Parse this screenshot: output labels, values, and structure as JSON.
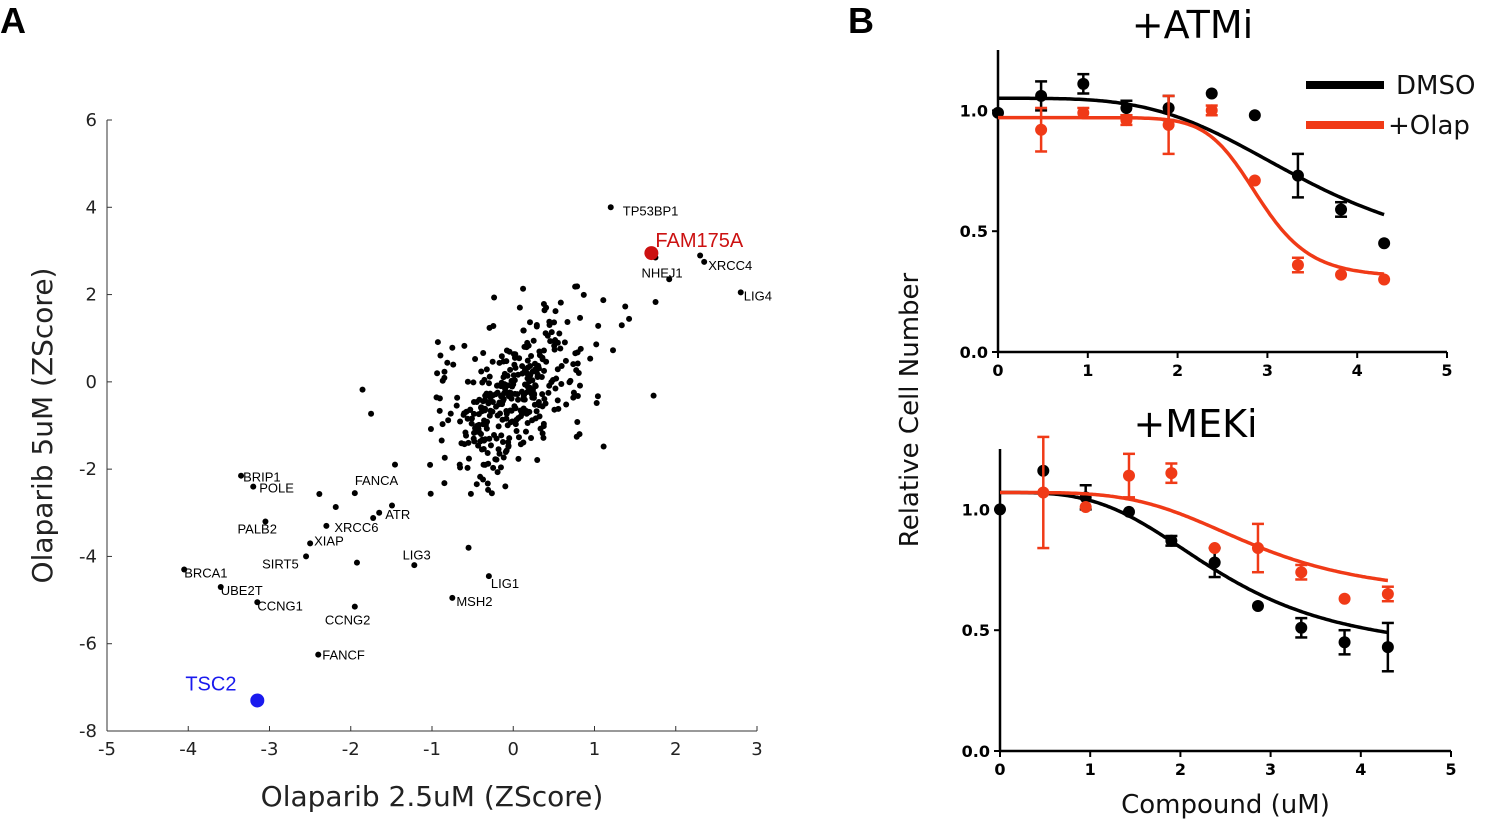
{
  "panels": {
    "a_letter": "A",
    "b_letter": "B"
  },
  "colors": {
    "black": "#000000",
    "red": "#f03a17",
    "fam": "#cc1111",
    "tsc": "#1a1aee"
  },
  "chart_data": [
    {
      "type": "scatter",
      "xlabel": "Olaparib 2.5uM (ZScore)",
      "ylabel": "Olaparib 5uM (ZScore)",
      "xlim": [
        -5,
        3
      ],
      "ylim": [
        -8,
        6
      ],
      "xticks": [
        "-5",
        "-4",
        "-3",
        "-2",
        "-1",
        "0",
        "1",
        "2",
        "3"
      ],
      "yticks": [
        "-8",
        "-6",
        "-4",
        "-2",
        "0",
        "2",
        "4",
        "6"
      ],
      "labeled_points": [
        {
          "label": "TP53BP1",
          "x": 1.2,
          "y": 4.0
        },
        {
          "label": "NHEJ1",
          "x": 1.75,
          "y": 2.85
        },
        {
          "label": "XRCC4",
          "x": 2.35,
          "y": 2.75
        },
        {
          "label": "LIG4",
          "x": 2.8,
          "y": 2.05
        },
        {
          "label": "BRIP1",
          "x": -3.35,
          "y": -2.15
        },
        {
          "label": "POLE",
          "x": -3.2,
          "y": -2.4
        },
        {
          "label": "FANCA",
          "x": -1.95,
          "y": -2.55
        },
        {
          "label": "XRCC6",
          "x": -2.3,
          "y": -3.3
        },
        {
          "label": "ATR",
          "x": -1.65,
          "y": -3.0
        },
        {
          "label": "PALB2",
          "x": -3.05,
          "y": -3.2
        },
        {
          "label": "XIAP",
          "x": -2.5,
          "y": -3.7
        },
        {
          "label": "SIRT5",
          "x": -2.55,
          "y": -4.0
        },
        {
          "label": "BRCA1",
          "x": -4.05,
          "y": -4.3
        },
        {
          "label": "UBE2T",
          "x": -3.6,
          "y": -4.7
        },
        {
          "label": "CCNG1",
          "x": -3.15,
          "y": -5.05
        },
        {
          "label": "CCNG2",
          "x": -1.95,
          "y": -5.15
        },
        {
          "label": "LIG3",
          "x": -0.55,
          "y": -3.8
        },
        {
          "label": "LIG1",
          "x": -0.3,
          "y": -4.45
        },
        {
          "label": "MSH2",
          "x": -0.75,
          "y": -4.95
        },
        {
          "label": "FANCF",
          "x": -2.4,
          "y": -6.25
        }
      ],
      "highlight_points": [
        {
          "label": "FAM175A",
          "x": 1.7,
          "y": 2.95,
          "color": "#cc1111"
        },
        {
          "label": "TSC2",
          "x": -3.15,
          "y": -7.3,
          "color": "#1a1aee"
        }
      ],
      "background_points": "approximately 380 unlabeled genes clustered around (0,0) with positive correlation"
    },
    {
      "type": "line",
      "title": "+ATMi",
      "xlim": [
        0,
        5
      ],
      "ylim": [
        0.0,
        1.25
      ],
      "xticks": [
        "0",
        "1",
        "2",
        "3",
        "4",
        "5"
      ],
      "yticks": [
        "0.0",
        "0.5",
        "1.0"
      ],
      "series": [
        {
          "name": "DMSO",
          "color": "#000000",
          "x": [
            0,
            0.48,
            0.95,
            1.43,
            1.9,
            2.38,
            2.86,
            3.34,
            3.82,
            4.3
          ],
          "y": [
            0.99,
            1.06,
            1.11,
            1.01,
            1.01,
            1.07,
            0.98,
            0.73,
            0.59,
            0.45
          ],
          "err": [
            0.0,
            0.06,
            0.04,
            0.03,
            0.05,
            0.0,
            0.0,
            0.09,
            0.03,
            0.0
          ],
          "fit": {
            "top": 1.05,
            "bottom": 0.36,
            "ec50": 3.45,
            "hill": 3.8
          }
        },
        {
          "name": "+Olap",
          "color": "#f03a17",
          "x": [
            0.48,
            0.95,
            1.43,
            1.9,
            2.38,
            2.86,
            3.34,
            3.82,
            4.3
          ],
          "y": [
            0.92,
            0.99,
            0.96,
            0.94,
            1.0,
            0.71,
            0.36,
            0.32,
            0.3
          ],
          "err": [
            0.09,
            0.02,
            0.02,
            0.12,
            0.02,
            0.0,
            0.03,
            0.0,
            0.0
          ],
          "fit": {
            "top": 0.97,
            "bottom": 0.31,
            "ec50": 2.9,
            "hill": 10.0
          }
        }
      ]
    },
    {
      "type": "line",
      "title": "+MEKi",
      "xlabel": "Compound (uM)",
      "xlim": [
        0,
        5
      ],
      "ylim": [
        0.0,
        1.25
      ],
      "xticks": [
        "0",
        "1",
        "2",
        "3",
        "4",
        "5"
      ],
      "yticks": [
        "0.0",
        "0.5",
        "1.0"
      ],
      "series": [
        {
          "name": "DMSO",
          "color": "#000000",
          "x": [
            0,
            0.48,
            0.95,
            1.43,
            1.9,
            2.38,
            2.86,
            3.34,
            3.82,
            4.3
          ],
          "y": [
            1.0,
            1.16,
            1.05,
            0.99,
            0.87,
            0.78,
            0.6,
            0.51,
            0.45,
            0.43
          ],
          "err": [
            0.0,
            0.0,
            0.05,
            0.0,
            0.02,
            0.06,
            0.0,
            0.04,
            0.05,
            0.1
          ],
          "fit": {
            "top": 1.07,
            "bottom": 0.4,
            "ec50": 2.45,
            "hill": 3.3
          }
        },
        {
          "name": "+Olap",
          "color": "#f03a17",
          "x": [
            0.48,
            0.95,
            1.43,
            1.9,
            2.38,
            2.86,
            3.34,
            3.82,
            4.3
          ],
          "y": [
            1.07,
            1.01,
            1.14,
            1.15,
            0.84,
            0.84,
            0.74,
            0.63,
            0.65
          ],
          "err": [
            0.23,
            0.0,
            0.09,
            0.04,
            0.0,
            0.1,
            0.03,
            0.0,
            0.03
          ],
          "fit": {
            "top": 1.07,
            "bottom": 0.64,
            "ec50": 2.8,
            "hill": 4.0
          }
        }
      ]
    }
  ],
  "panel_b": {
    "ylabel": "Relative Cell Number",
    "legend": [
      {
        "label": "DMSO",
        "color": "#000000"
      },
      {
        "label": "+Olap",
        "color": "#f03a17"
      }
    ]
  }
}
